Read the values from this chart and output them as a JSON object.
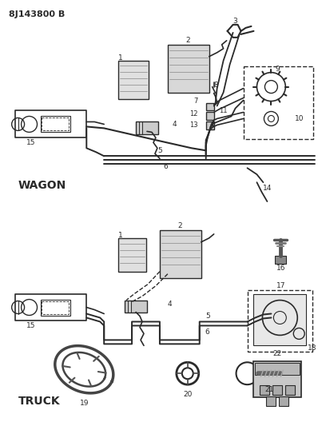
{
  "title": "8J143800 B",
  "background_color": "#ffffff",
  "line_color": "#2a2a2a",
  "wagon_label": "WAGON",
  "truck_label": "TRUCK",
  "figsize": [
    3.98,
    5.33
  ],
  "dpi": 100
}
